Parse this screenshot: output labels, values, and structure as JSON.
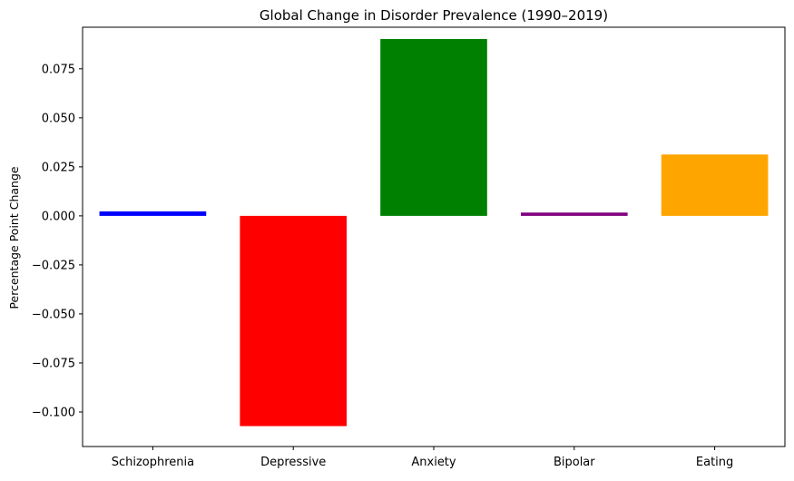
{
  "chart_data": {
    "type": "bar",
    "title": "Global Change in Disorder Prevalence (1990–2019)",
    "xlabel": "",
    "ylabel": "Percentage Point Change",
    "categories": [
      "Schizophrenia",
      "Depressive",
      "Anxiety",
      "Bipolar",
      "Eating"
    ],
    "values": [
      0.0023,
      -0.1072,
      0.0902,
      0.0017,
      0.0313
    ],
    "colors": [
      "#0000ff",
      "#ff0000",
      "#008000",
      "#800080",
      "#ffa500"
    ],
    "ylim": [
      -0.1176,
      0.0962
    ],
    "yticks": [
      -0.1,
      -0.075,
      -0.05,
      -0.025,
      0.0,
      0.025,
      0.05,
      0.075
    ],
    "ytick_labels": [
      "−0.100",
      "−0.075",
      "−0.050",
      "−0.025",
      "0.000",
      "0.025",
      "0.050",
      "0.075"
    ],
    "grid": false,
    "legend": "none"
  }
}
